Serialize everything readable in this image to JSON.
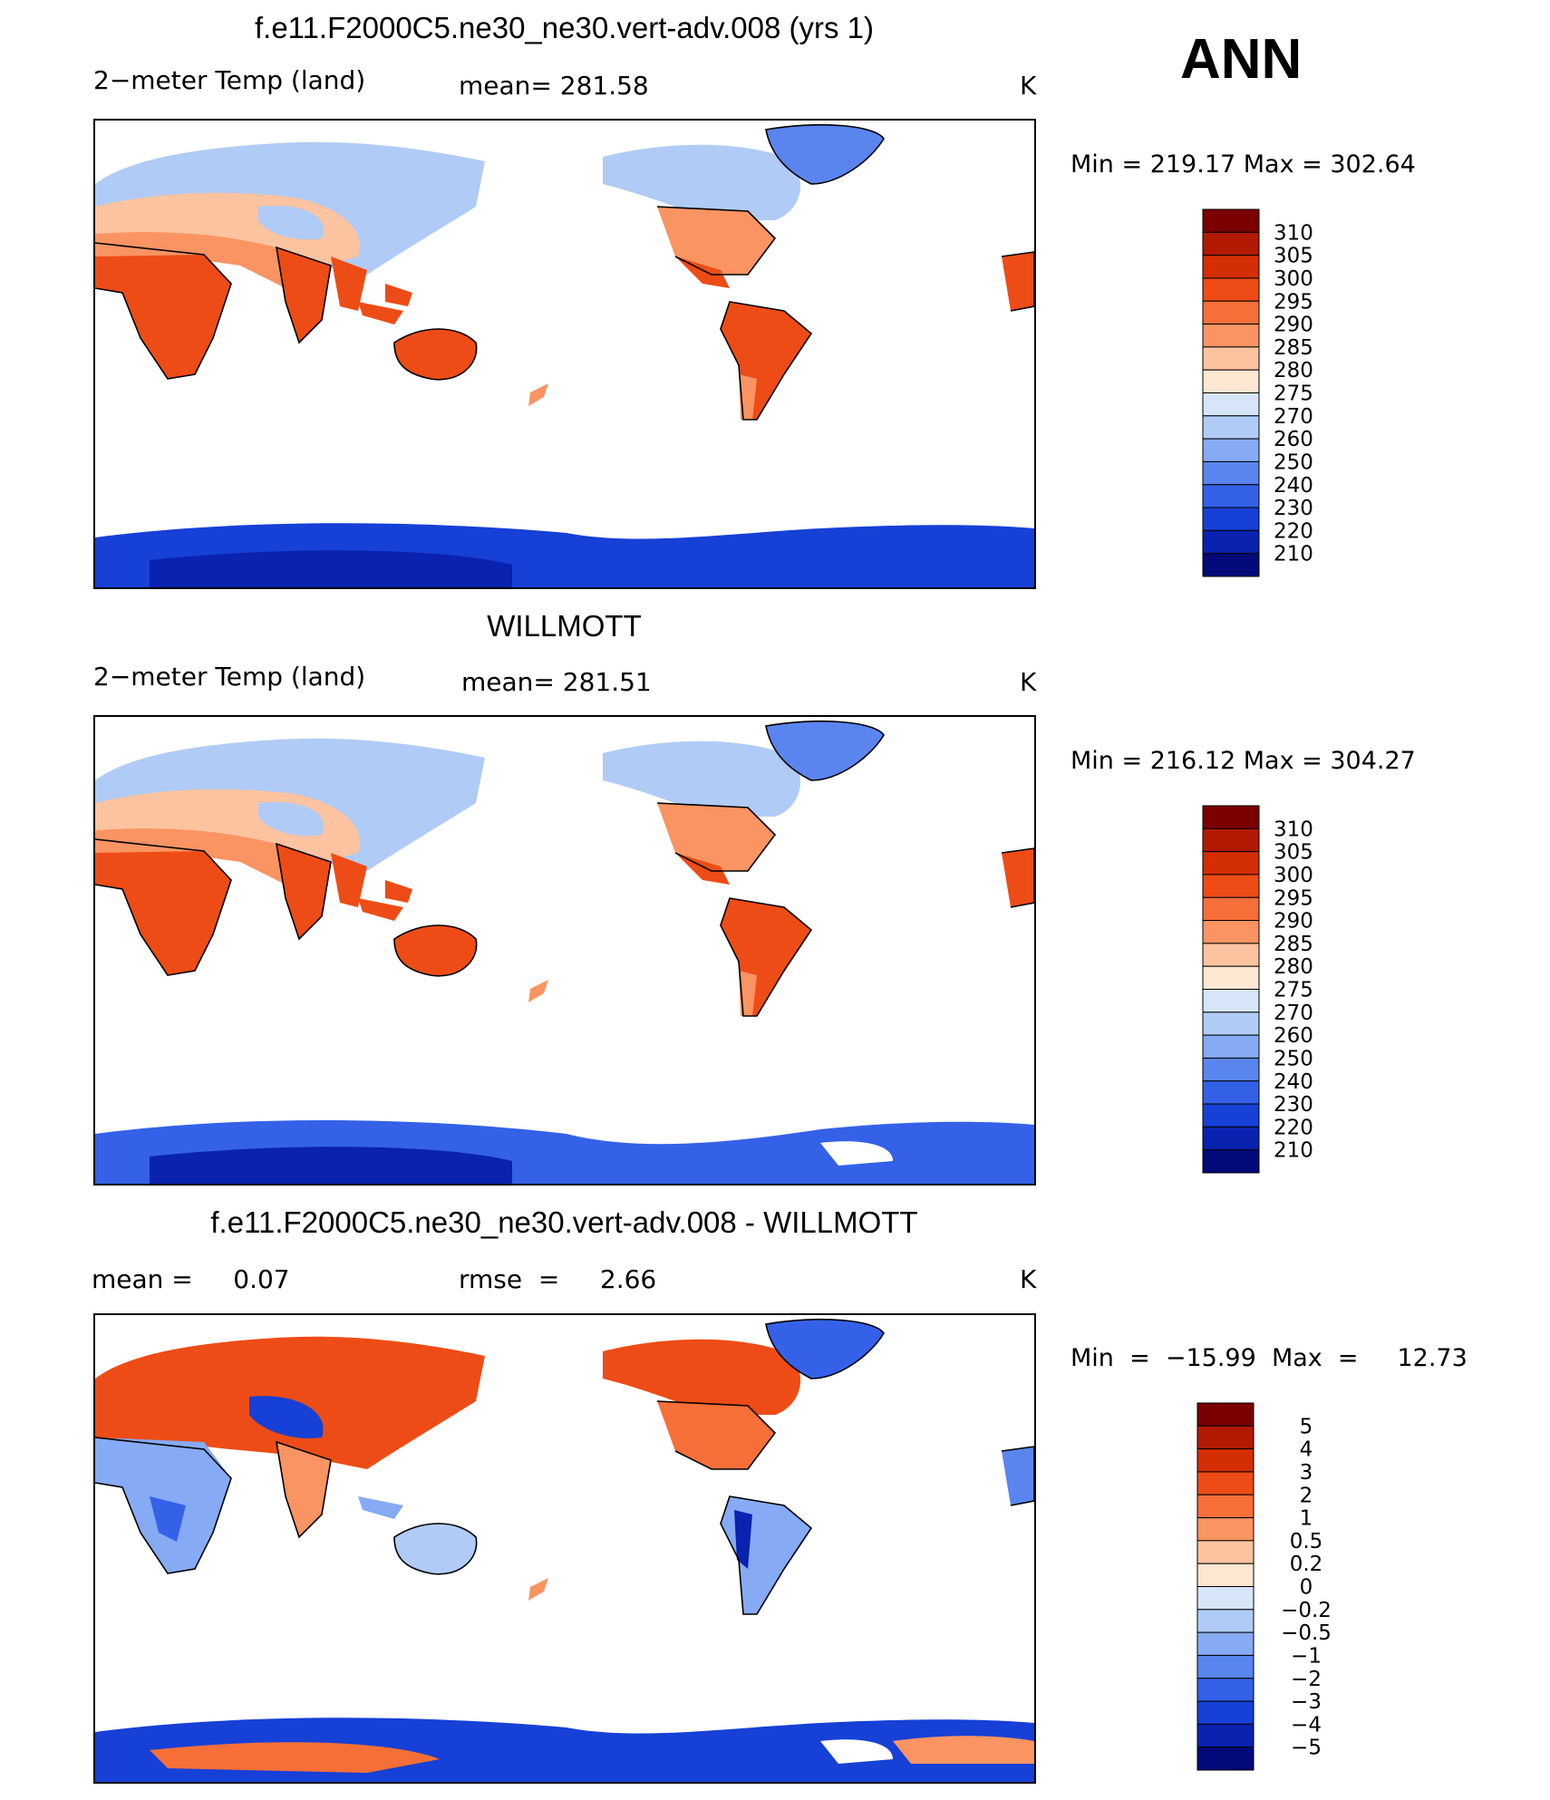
{
  "header": {
    "season": "ANN"
  },
  "panels": [
    {
      "title": "f.e11.F2000C5.ne30_ne30.vert-adv.008 (yrs 1)",
      "variable": "2−meter Temp (land)",
      "stat": "mean=  281.58",
      "units": "K",
      "range": "Min  =  219.17  Max  =  302.64",
      "colorbar": {
        "labels": [
          "310",
          "305",
          "300",
          "295",
          "290",
          "285",
          "280",
          "275",
          "270",
          "260",
          "250",
          "240",
          "230",
          "220",
          "210"
        ],
        "colors": [
          "#7a0000",
          "#b11a00",
          "#d42e05",
          "#ee4c16",
          "#f76f38",
          "#fa9462",
          "#fcc3a0",
          "#fde6d2",
          "#d6e6f8",
          "#b0cbf5",
          "#86aaf4",
          "#5a85ef",
          "#3461e8",
          "#1640d6",
          "#0a22b0",
          "#020a7a"
        ]
      }
    },
    {
      "title": "WILLMOTT",
      "variable": "2−meter Temp (land)",
      "stat": "mean=  281.51",
      "units": "K",
      "range": "Min  =  216.12  Max  =  304.27",
      "colorbar": {
        "labels": [
          "310",
          "305",
          "300",
          "295",
          "290",
          "285",
          "280",
          "275",
          "270",
          "260",
          "250",
          "240",
          "230",
          "220",
          "210"
        ],
        "colors": [
          "#7a0000",
          "#b11a00",
          "#d42e05",
          "#ee4c16",
          "#f76f38",
          "#fa9462",
          "#fcc3a0",
          "#fde6d2",
          "#d6e6f8",
          "#b0cbf5",
          "#86aaf4",
          "#5a85ef",
          "#3461e8",
          "#1640d6",
          "#0a22b0",
          "#020a7a"
        ]
      }
    },
    {
      "title": "f.e11.F2000C5.ne30_ne30.vert-adv.008 - WILLMOTT",
      "variable": "mean =     0.07",
      "stat": "rmse  =     2.66",
      "units": "K",
      "range": "Min  =  −15.99  Max  =     12.73",
      "colorbar": {
        "labels": [
          "5",
          "4",
          "3",
          "2",
          "1",
          "0.5",
          "0.2",
          "0",
          "−0.2",
          "−0.5",
          "−1",
          "−2",
          "−3",
          "−4",
          "−5"
        ],
        "colors": [
          "#7a0000",
          "#b11a00",
          "#d42e05",
          "#ee4c16",
          "#f76f38",
          "#fa9462",
          "#fcc3a0",
          "#fde6d2",
          "#d6e6f8",
          "#b0cbf5",
          "#86aaf4",
          "#5a85ef",
          "#3461e8",
          "#1640d6",
          "#0a22b0",
          "#020a7a"
        ]
      }
    }
  ]
}
